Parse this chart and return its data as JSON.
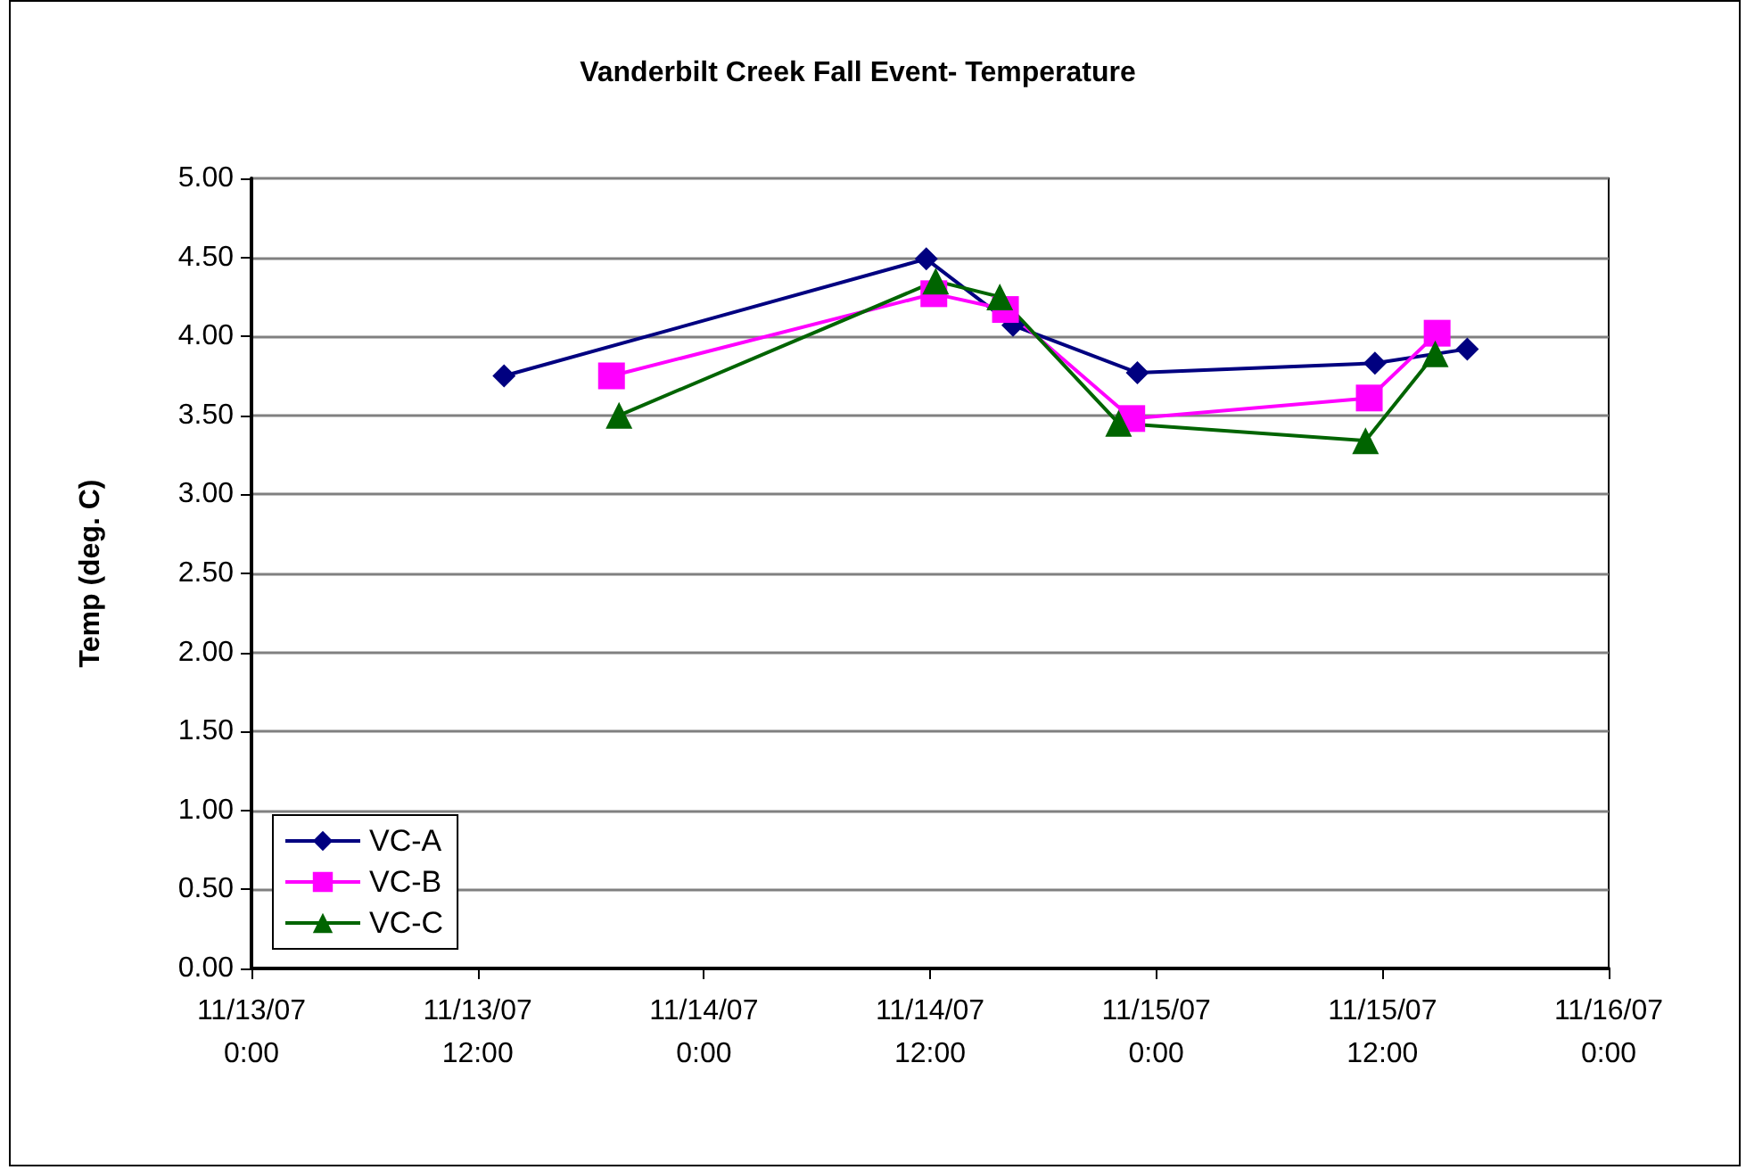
{
  "chart_data": {
    "type": "line",
    "title": "Vanderbilt Creek Fall Event- Temperature",
    "ylabel": "Temp (deg. C)",
    "xlim": [
      "--11-13T00:00",
      "--11-16T00:00"
    ],
    "xticks": [
      {
        "value": "--11-13T00:00",
        "label": "11/13/07\n0:00"
      },
      {
        "value": "--11-13T12:00",
        "label": "11/13/07\n12:00"
      },
      {
        "value": "--11-14T00:00",
        "label": "11/14/07\n0:00"
      },
      {
        "value": "--11-14T12:00",
        "label": "11/14/07\n12:00"
      },
      {
        "value": "--11-15T00:00",
        "label": "11/15/07\n0:00"
      },
      {
        "value": "--11-15T12:00",
        "label": "11/15/07\n12:00"
      },
      {
        "value": "--11-16T00:00",
        "label": "11/16/07\n0:00"
      }
    ],
    "ylim": [
      0,
      5
    ],
    "yticks": [
      {
        "value": 0,
        "label": "0.00"
      },
      {
        "value": 0.5,
        "label": "0.50"
      },
      {
        "value": 1,
        "label": "1.00"
      },
      {
        "value": 1.5,
        "label": "1.50"
      },
      {
        "value": 2,
        "label": "2.00"
      },
      {
        "value": 2.5,
        "label": "2.50"
      },
      {
        "value": 3,
        "label": "3.00"
      },
      {
        "value": 3.5,
        "label": "3.50"
      },
      {
        "value": 4,
        "label": "4.00"
      },
      {
        "value": 4.5,
        "label": "4.50"
      },
      {
        "value": 5,
        "label": "5.00"
      }
    ],
    "grid": "y",
    "legend": "bottom left",
    "series": [
      {
        "name": "VC-A",
        "color": "#000080",
        "marker": "diamond",
        "x": [
          "--11-13T13:24",
          "--11-14T11:48",
          "--11-14T16:24",
          "--11-14T23:00",
          "--11-15T11:36",
          "--11-15T16:30"
        ],
        "values": [
          3.75,
          4.49,
          4.07,
          3.77,
          3.83,
          3.92
        ]
      },
      {
        "name": "VC-B",
        "color": "#ff00ff",
        "marker": "square",
        "x": [
          "--11-13T19:06",
          "--11-14T12:12",
          "--11-14T16:00",
          "--11-14T22:42",
          "--11-15T11:18",
          "--11-15T14:54"
        ],
        "values": [
          3.75,
          4.27,
          4.17,
          3.48,
          3.61,
          4.02
        ]
      },
      {
        "name": "VC-C",
        "color": "#006400",
        "marker": "triangle",
        "x": [
          "--11-13T19:30",
          "--11-14T12:18",
          "--11-14T15:42",
          "--11-14T22:00",
          "--11-15T11:06",
          "--11-15T14:48"
        ],
        "values": [
          3.5,
          4.35,
          4.25,
          3.45,
          3.34,
          3.89
        ]
      }
    ]
  }
}
